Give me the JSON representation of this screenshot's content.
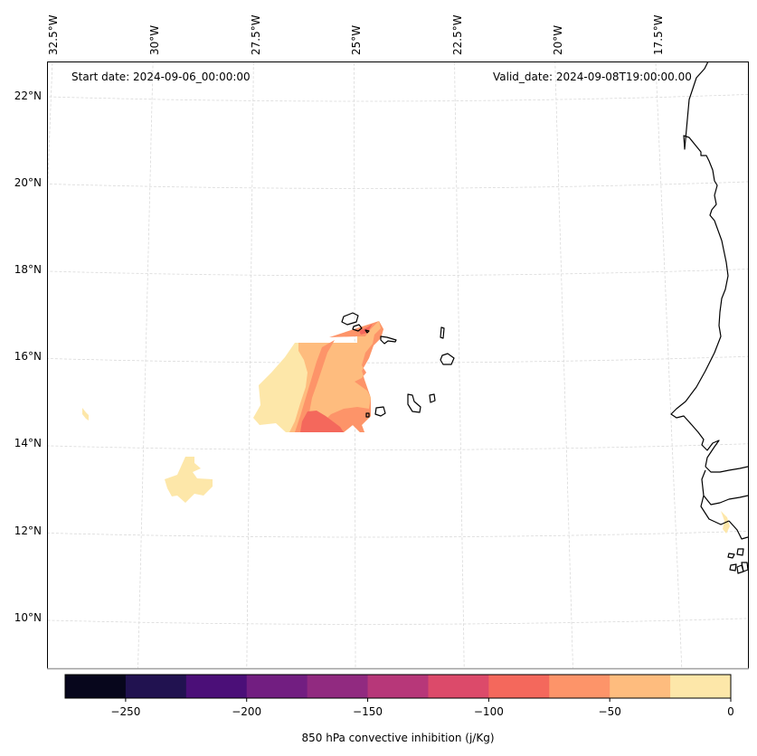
{
  "map": {
    "start_date_label": "Start date: 2024-09-06_00:00:00",
    "valid_date_label": "Valid_date: 2024-09-08T19:00:00.00",
    "lon_labels": [
      "32.5°W",
      "30°W",
      "27.5°W",
      "25°W",
      "22.5°W",
      "20°W",
      "17.5°W"
    ],
    "lat_labels": [
      "22°N",
      "20°N",
      "18°N",
      "16°N",
      "14°N",
      "12°N",
      "10°N"
    ],
    "gridline_color": "#d9d9d9",
    "coastline_color": "#000000"
  },
  "chart_data": {
    "type": "heatmap",
    "subtype": "filled-contour map",
    "title": "",
    "variable": "850 hPa convective inhibition",
    "units": "j/Kg",
    "extent": {
      "lon": [
        -32.6,
        -15.8
      ],
      "lat": [
        8.9,
        22.8
      ]
    },
    "lon_ticks": [
      -32.5,
      -30,
      -27.5,
      -25,
      -22.5,
      -20,
      -17.5
    ],
    "lat_ticks": [
      22,
      20,
      18,
      16,
      14,
      12,
      10
    ],
    "levels": [
      -275,
      -250,
      -225,
      -200,
      -175,
      -150,
      -125,
      -100,
      -75,
      -50,
      -25,
      0
    ],
    "level_colors": [
      "#07061c",
      "#211250",
      "#4b0f78",
      "#721e81",
      "#912a80",
      "#b73779",
      "#dc4a6a",
      "#f4685c",
      "#fd9469",
      "#febc7e",
      "#fde7a9"
    ],
    "colorbar": {
      "orientation": "horizontal",
      "placement": "bottom",
      "ticks": [
        -250,
        -200,
        -150,
        -100,
        -50,
        0
      ],
      "tick_labels": [
        "−250",
        "−200",
        "−150",
        "−100",
        "−50",
        "0"
      ],
      "label": "850 hPa convective inhibition (j/Kg)"
    },
    "regions": [
      {
        "name": "main-cin-area-outer",
        "range": [
          -25,
          0
        ],
        "approx_center": [
          -26.6,
          15.0
        ],
        "note": "western part of main feature west of Cape Verde"
      },
      {
        "name": "main-cin-area-band",
        "range": [
          -50,
          -25
        ],
        "approx_center": [
          -26.0,
          15.4
        ]
      },
      {
        "name": "main-cin-area-core",
        "range": [
          -75,
          -50
        ],
        "approx_center": [
          -25.3,
          15.3
        ]
      },
      {
        "name": "main-cin-area-peak",
        "range": [
          -100,
          -75
        ],
        "approx_center": [
          -25.6,
          14.4
        ],
        "note": "strongest inhibition near 14.4N 25.6W; small strip also near 16.6N 24.7W"
      },
      {
        "name": "southwest-patch",
        "range": [
          -25,
          0
        ],
        "approx_center": [
          -30.0,
          13.0
        ]
      },
      {
        "name": "far-west-speck",
        "range": [
          -25,
          0
        ],
        "approx_center": [
          -32.2,
          14.6
        ]
      },
      {
        "name": "guinea-bissau-coast-patch",
        "range": [
          -25,
          0
        ],
        "approx_center": [
          -16.1,
          12.0
        ]
      }
    ]
  }
}
